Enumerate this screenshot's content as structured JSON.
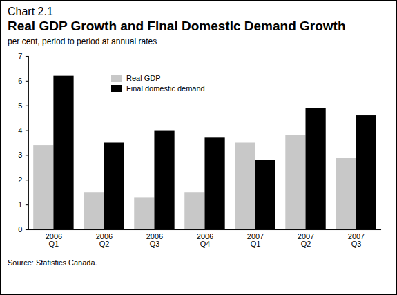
{
  "chart_data": {
    "type": "bar",
    "chart_number": "Chart 2.1",
    "title": "Real GDP Growth and Final Domestic Demand Growth",
    "subtitle": "per cent, period to period at annual rates",
    "source": "Source: Statistics Canada.",
    "categories": [
      "2006\nQ1",
      "2006\nQ2",
      "2006\nQ3",
      "2006\nQ4",
      "2007\nQ1",
      "2007\nQ2",
      "2007\nQ3"
    ],
    "series": [
      {
        "name": "Real GDP",
        "color": "#c8c8c8",
        "values": [
          3.4,
          1.5,
          1.3,
          1.5,
          3.5,
          3.8,
          2.9
        ]
      },
      {
        "name": "Final domestic demand",
        "color": "#000000",
        "values": [
          6.2,
          3.5,
          4.0,
          3.7,
          2.8,
          4.9,
          4.6
        ]
      }
    ],
    "ylim": [
      0,
      7
    ],
    "yticks": [
      0,
      1,
      2,
      3,
      4,
      5,
      6,
      7
    ],
    "grid": false,
    "legend": "top-left"
  }
}
